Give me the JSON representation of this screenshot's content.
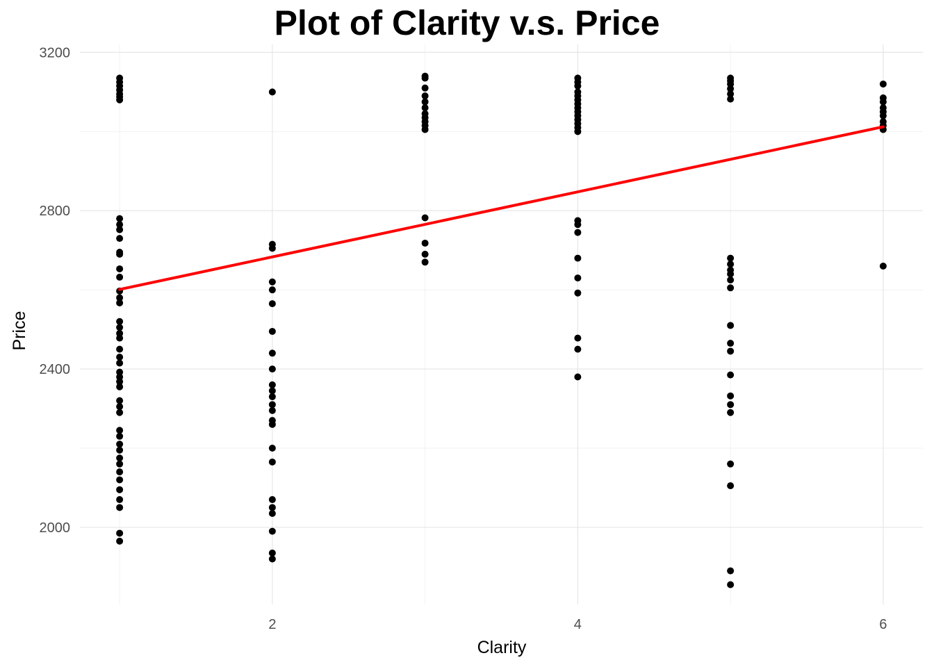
{
  "chart_data": {
    "type": "scatter",
    "title": "Plot of Clarity v.s. Price",
    "xlabel": "Clarity",
    "ylabel": "Price",
    "xlim": [
      0.74,
      6.26
    ],
    "ylim": [
      1805,
      3220
    ],
    "x_ticks": [
      2,
      4,
      6
    ],
    "y_ticks": [
      2000,
      2400,
      2800,
      3200
    ],
    "grid": true,
    "point_color": "#000000",
    "trendline": {
      "color": "#ff0000",
      "x": [
        1,
        6
      ],
      "y": [
        2601,
        3012
      ]
    },
    "series": [
      {
        "x": 1,
        "values": [
          3135,
          3125,
          3115,
          3105,
          3095,
          3088,
          3080,
          2780,
          2765,
          2752,
          2730,
          2695,
          2690,
          2653,
          2632,
          2597,
          2580,
          2567,
          2520,
          2505,
          2490,
          2478,
          2450,
          2430,
          2415,
          2392,
          2380,
          2368,
          2355,
          2320,
          2305,
          2290,
          2245,
          2230,
          2210,
          2195,
          2175,
          2160,
          2140,
          2120,
          2095,
          2070,
          2050,
          1985,
          1965
        ]
      },
      {
        "x": 2,
        "values": [
          3100,
          2715,
          2705,
          2620,
          2600,
          2565,
          2495,
          2440,
          2400,
          2360,
          2345,
          2330,
          2310,
          2295,
          2270,
          2260,
          2200,
          2165,
          2070,
          2050,
          2035,
          1990,
          1935,
          1920
        ]
      },
      {
        "x": 3,
        "values": [
          3140,
          3135,
          3110,
          3090,
          3075,
          3060,
          3045,
          3035,
          3025,
          3015,
          3005,
          2782,
          2718,
          2690,
          2670
        ]
      },
      {
        "x": 4,
        "values": [
          3135,
          3125,
          3115,
          3100,
          3090,
          3080,
          3070,
          3060,
          3050,
          3040,
          3030,
          3020,
          3010,
          3000,
          2775,
          2765,
          2745,
          2680,
          2630,
          2592,
          2478,
          2450,
          2380
        ]
      },
      {
        "x": 5,
        "values": [
          3135,
          3128,
          3120,
          3108,
          3095,
          3082,
          2680,
          2665,
          2650,
          2640,
          2625,
          2605,
          2510,
          2465,
          2445,
          2385,
          2332,
          2310,
          2290,
          2160,
          2105,
          1890,
          1855
        ]
      },
      {
        "x": 6,
        "values": [
          3120,
          3085,
          3075,
          3060,
          3050,
          3040,
          3025,
          3015,
          3005,
          2660
        ]
      }
    ]
  }
}
